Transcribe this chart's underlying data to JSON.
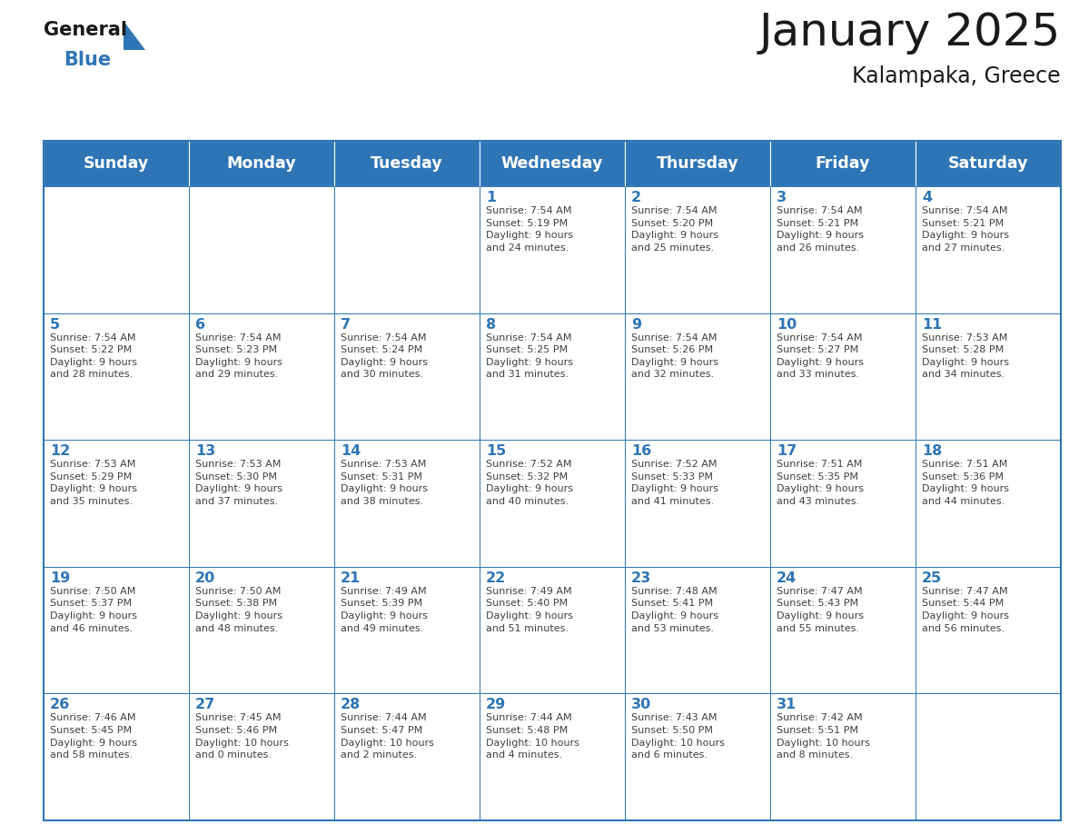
{
  "title": "January 2025",
  "subtitle": "Kalampaka, Greece",
  "header_color": "#2E75B6",
  "header_text_color": "#FFFFFF",
  "cell_bg_color": "#FFFFFF",
  "border_color": "#2E75B6",
  "day_number_color": "#2E75B6",
  "text_color": "#404040",
  "days_of_week": [
    "Sunday",
    "Monday",
    "Tuesday",
    "Wednesday",
    "Thursday",
    "Friday",
    "Saturday"
  ],
  "calendar_data": [
    [
      {
        "day": null,
        "info": null
      },
      {
        "day": null,
        "info": null
      },
      {
        "day": null,
        "info": null
      },
      {
        "day": 1,
        "info": "Sunrise: 7:54 AM\nSunset: 5:19 PM\nDaylight: 9 hours\nand 24 minutes."
      },
      {
        "day": 2,
        "info": "Sunrise: 7:54 AM\nSunset: 5:20 PM\nDaylight: 9 hours\nand 25 minutes."
      },
      {
        "day": 3,
        "info": "Sunrise: 7:54 AM\nSunset: 5:21 PM\nDaylight: 9 hours\nand 26 minutes."
      },
      {
        "day": 4,
        "info": "Sunrise: 7:54 AM\nSunset: 5:21 PM\nDaylight: 9 hours\nand 27 minutes."
      }
    ],
    [
      {
        "day": 5,
        "info": "Sunrise: 7:54 AM\nSunset: 5:22 PM\nDaylight: 9 hours\nand 28 minutes."
      },
      {
        "day": 6,
        "info": "Sunrise: 7:54 AM\nSunset: 5:23 PM\nDaylight: 9 hours\nand 29 minutes."
      },
      {
        "day": 7,
        "info": "Sunrise: 7:54 AM\nSunset: 5:24 PM\nDaylight: 9 hours\nand 30 minutes."
      },
      {
        "day": 8,
        "info": "Sunrise: 7:54 AM\nSunset: 5:25 PM\nDaylight: 9 hours\nand 31 minutes."
      },
      {
        "day": 9,
        "info": "Sunrise: 7:54 AM\nSunset: 5:26 PM\nDaylight: 9 hours\nand 32 minutes."
      },
      {
        "day": 10,
        "info": "Sunrise: 7:54 AM\nSunset: 5:27 PM\nDaylight: 9 hours\nand 33 minutes."
      },
      {
        "day": 11,
        "info": "Sunrise: 7:53 AM\nSunset: 5:28 PM\nDaylight: 9 hours\nand 34 minutes."
      }
    ],
    [
      {
        "day": 12,
        "info": "Sunrise: 7:53 AM\nSunset: 5:29 PM\nDaylight: 9 hours\nand 35 minutes."
      },
      {
        "day": 13,
        "info": "Sunrise: 7:53 AM\nSunset: 5:30 PM\nDaylight: 9 hours\nand 37 minutes."
      },
      {
        "day": 14,
        "info": "Sunrise: 7:53 AM\nSunset: 5:31 PM\nDaylight: 9 hours\nand 38 minutes."
      },
      {
        "day": 15,
        "info": "Sunrise: 7:52 AM\nSunset: 5:32 PM\nDaylight: 9 hours\nand 40 minutes."
      },
      {
        "day": 16,
        "info": "Sunrise: 7:52 AM\nSunset: 5:33 PM\nDaylight: 9 hours\nand 41 minutes."
      },
      {
        "day": 17,
        "info": "Sunrise: 7:51 AM\nSunset: 5:35 PM\nDaylight: 9 hours\nand 43 minutes."
      },
      {
        "day": 18,
        "info": "Sunrise: 7:51 AM\nSunset: 5:36 PM\nDaylight: 9 hours\nand 44 minutes."
      }
    ],
    [
      {
        "day": 19,
        "info": "Sunrise: 7:50 AM\nSunset: 5:37 PM\nDaylight: 9 hours\nand 46 minutes."
      },
      {
        "day": 20,
        "info": "Sunrise: 7:50 AM\nSunset: 5:38 PM\nDaylight: 9 hours\nand 48 minutes."
      },
      {
        "day": 21,
        "info": "Sunrise: 7:49 AM\nSunset: 5:39 PM\nDaylight: 9 hours\nand 49 minutes."
      },
      {
        "day": 22,
        "info": "Sunrise: 7:49 AM\nSunset: 5:40 PM\nDaylight: 9 hours\nand 51 minutes."
      },
      {
        "day": 23,
        "info": "Sunrise: 7:48 AM\nSunset: 5:41 PM\nDaylight: 9 hours\nand 53 minutes."
      },
      {
        "day": 24,
        "info": "Sunrise: 7:47 AM\nSunset: 5:43 PM\nDaylight: 9 hours\nand 55 minutes."
      },
      {
        "day": 25,
        "info": "Sunrise: 7:47 AM\nSunset: 5:44 PM\nDaylight: 9 hours\nand 56 minutes."
      }
    ],
    [
      {
        "day": 26,
        "info": "Sunrise: 7:46 AM\nSunset: 5:45 PM\nDaylight: 9 hours\nand 58 minutes."
      },
      {
        "day": 27,
        "info": "Sunrise: 7:45 AM\nSunset: 5:46 PM\nDaylight: 10 hours\nand 0 minutes."
      },
      {
        "day": 28,
        "info": "Sunrise: 7:44 AM\nSunset: 5:47 PM\nDaylight: 10 hours\nand 2 minutes."
      },
      {
        "day": 29,
        "info": "Sunrise: 7:44 AM\nSunset: 5:48 PM\nDaylight: 10 hours\nand 4 minutes."
      },
      {
        "day": 30,
        "info": "Sunrise: 7:43 AM\nSunset: 5:50 PM\nDaylight: 10 hours\nand 6 minutes."
      },
      {
        "day": 31,
        "info": "Sunrise: 7:42 AM\nSunset: 5:51 PM\nDaylight: 10 hours\nand 8 minutes."
      },
      {
        "day": null,
        "info": null
      }
    ]
  ],
  "fig_width": 11.88,
  "fig_height": 9.18,
  "dpi": 100
}
